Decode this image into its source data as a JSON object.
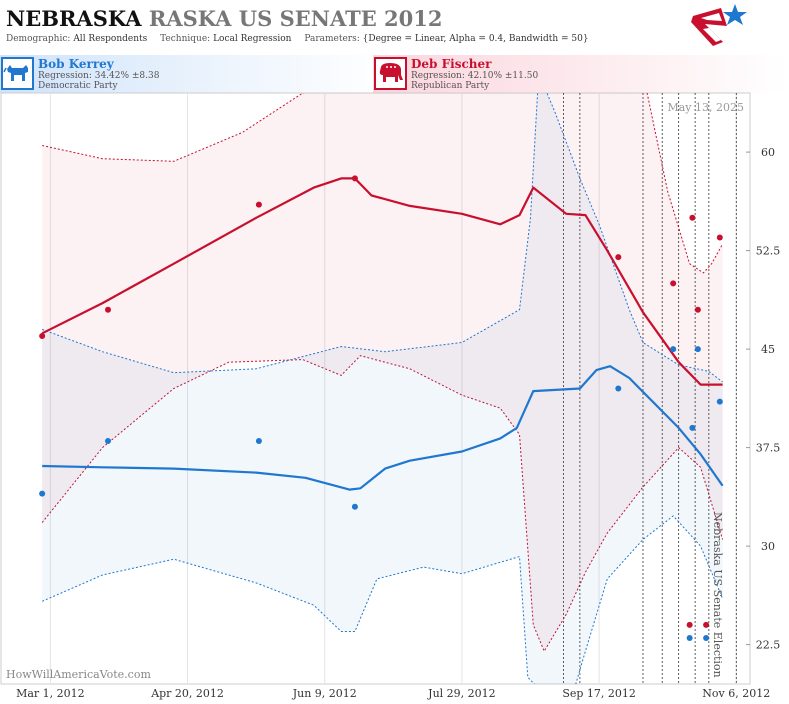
{
  "header": {
    "title_state": "NEBRASKA",
    "title_rest": "RASKA US SENATE 2012",
    "demographic_label": "Demographic:",
    "demographic_value": "All Respondents",
    "technique_label": "Technique:",
    "technique_value": "Local Regression",
    "parameters_label": "Parameters:",
    "parameters_value": "{Degree = Linear, Alpha = 0.4, Bandwidth = 50}"
  },
  "candidates": [
    {
      "name": "Bob Kerrey",
      "regression": "Regression: 34.42% ±8.38",
      "party": "Democratic Party",
      "color": "#1f77d0"
    },
    {
      "name": "Deb Fischer",
      "regression": "Regression: 42.10% ±11.50",
      "party": "Republican Party",
      "color": "#c8102e"
    }
  ],
  "chart_data": {
    "type": "scatter",
    "date_stamp": "May 13, 2025",
    "vertical_label": "Nebraska US Senate Election",
    "watermark": "HowWillAmericaVote.com",
    "x_axis": {
      "ticks": [
        "2012-03-01",
        "2012-04-20",
        "2012-06-09",
        "2012-07-29",
        "2012-09-17",
        "2012-11-06"
      ],
      "tick_labels": [
        "Mar 1, 2012",
        "Apr 20, 2012",
        "Jun 9, 2012",
        "Jul 29, 2012",
        "Sep 17, 2012",
        "Nov 6, 2012"
      ],
      "range": [
        "2012-02-12",
        "2012-11-11"
      ]
    },
    "y_axis": {
      "ticks": [
        22.5,
        30,
        37.5,
        45,
        52.5,
        60
      ],
      "tick_labels": [
        "22.5",
        "30",
        "37.5",
        "45",
        "52.5",
        "60"
      ],
      "range": [
        19.5,
        64.5
      ],
      "position": "right"
    },
    "grid": "x-only",
    "event_lines": [
      "2012-09-04",
      "2012-09-10",
      "2012-10-03",
      "2012-10-10",
      "2012-10-16",
      "2012-10-22",
      "2012-10-27",
      "2012-11-06"
    ],
    "series": [
      {
        "name": "Bob Kerrey",
        "color": "#1f77d0",
        "polls": [
          {
            "x": "2012-02-27",
            "y": 34
          },
          {
            "x": "2012-03-22",
            "y": 38
          },
          {
            "x": "2012-05-16",
            "y": 38
          },
          {
            "x": "2012-06-20",
            "y": 33
          },
          {
            "x": "2012-09-24",
            "y": 42
          },
          {
            "x": "2012-10-14",
            "y": 45
          },
          {
            "x": "2012-10-20",
            "y": 23
          },
          {
            "x": "2012-10-21",
            "y": 39
          },
          {
            "x": "2012-10-23",
            "y": 45
          },
          {
            "x": "2012-10-26",
            "y": 23
          },
          {
            "x": "2012-10-31",
            "y": 41
          }
        ],
        "regression": [
          {
            "x": "2012-02-27",
            "y": 36.1
          },
          {
            "x": "2012-03-20",
            "y": 36.0
          },
          {
            "x": "2012-04-15",
            "y": 35.9
          },
          {
            "x": "2012-05-15",
            "y": 35.6
          },
          {
            "x": "2012-06-02",
            "y": 35.2
          },
          {
            "x": "2012-06-18",
            "y": 34.3
          },
          {
            "x": "2012-06-22",
            "y": 34.4
          },
          {
            "x": "2012-07-01",
            "y": 35.9
          },
          {
            "x": "2012-07-10",
            "y": 36.5
          },
          {
            "x": "2012-07-29",
            "y": 37.2
          },
          {
            "x": "2012-08-12",
            "y": 38.2
          },
          {
            "x": "2012-08-18",
            "y": 39.0
          },
          {
            "x": "2012-08-24",
            "y": 41.8
          },
          {
            "x": "2012-09-10",
            "y": 42.0
          },
          {
            "x": "2012-09-16",
            "y": 43.4
          },
          {
            "x": "2012-09-21",
            "y": 43.7
          },
          {
            "x": "2012-09-28",
            "y": 42.8
          },
          {
            "x": "2012-10-16",
            "y": 39.0
          },
          {
            "x": "2012-10-24",
            "y": 37.0
          },
          {
            "x": "2012-11-01",
            "y": 34.6
          }
        ],
        "upper": [
          {
            "x": "2012-02-27",
            "y": 46.5
          },
          {
            "x": "2012-03-20",
            "y": 44.8
          },
          {
            "x": "2012-04-15",
            "y": 43.2
          },
          {
            "x": "2012-05-15",
            "y": 43.5
          },
          {
            "x": "2012-06-15",
            "y": 45.2
          },
          {
            "x": "2012-07-01",
            "y": 44.8
          },
          {
            "x": "2012-07-29",
            "y": 45.5
          },
          {
            "x": "2012-08-19",
            "y": 48.0
          },
          {
            "x": "2012-08-23",
            "y": 55.0
          },
          {
            "x": "2012-08-26",
            "y": 66.0
          },
          {
            "x": "2012-09-01",
            "y": 63.0
          },
          {
            "x": "2012-09-10",
            "y": 58.0
          },
          {
            "x": "2012-09-17",
            "y": 54.5
          },
          {
            "x": "2012-09-28",
            "y": 48.0
          },
          {
            "x": "2012-10-03",
            "y": 45.5
          },
          {
            "x": "2012-10-16",
            "y": 43.8
          },
          {
            "x": "2012-10-27",
            "y": 43.3
          },
          {
            "x": "2012-11-01",
            "y": 42.5
          }
        ],
        "lower": [
          {
            "x": "2012-02-27",
            "y": 25.8
          },
          {
            "x": "2012-03-20",
            "y": 27.8
          },
          {
            "x": "2012-04-15",
            "y": 29.0
          },
          {
            "x": "2012-05-15",
            "y": 27.2
          },
          {
            "x": "2012-06-05",
            "y": 25.5
          },
          {
            "x": "2012-06-15",
            "y": 23.5
          },
          {
            "x": "2012-06-20",
            "y": 23.5
          },
          {
            "x": "2012-06-28",
            "y": 27.5
          },
          {
            "x": "2012-07-15",
            "y": 28.4
          },
          {
            "x": "2012-07-29",
            "y": 27.9
          },
          {
            "x": "2012-08-19",
            "y": 29.2
          },
          {
            "x": "2012-08-22",
            "y": 20.0
          },
          {
            "x": "2012-09-05",
            "y": 17.0
          },
          {
            "x": "2012-09-12",
            "y": 22.0
          },
          {
            "x": "2012-09-20",
            "y": 27.5
          },
          {
            "x": "2012-10-03",
            "y": 30.5
          },
          {
            "x": "2012-10-14",
            "y": 32.3
          },
          {
            "x": "2012-10-24",
            "y": 30.0
          },
          {
            "x": "2012-11-01",
            "y": 26.0
          }
        ]
      },
      {
        "name": "Deb Fischer",
        "color": "#c8102e",
        "polls": [
          {
            "x": "2012-02-27",
            "y": 46
          },
          {
            "x": "2012-03-22",
            "y": 48
          },
          {
            "x": "2012-05-16",
            "y": 56
          },
          {
            "x": "2012-06-20",
            "y": 58
          },
          {
            "x": "2012-09-24",
            "y": 52
          },
          {
            "x": "2012-10-14",
            "y": 50
          },
          {
            "x": "2012-10-20",
            "y": 24
          },
          {
            "x": "2012-10-21",
            "y": 55
          },
          {
            "x": "2012-10-23",
            "y": 48
          },
          {
            "x": "2012-10-26",
            "y": 24
          },
          {
            "x": "2012-10-31",
            "y": 53.5
          }
        ],
        "regression": [
          {
            "x": "2012-02-27",
            "y": 46.2
          },
          {
            "x": "2012-03-20",
            "y": 48.5
          },
          {
            "x": "2012-04-15",
            "y": 51.5
          },
          {
            "x": "2012-05-15",
            "y": 55.0
          },
          {
            "x": "2012-06-05",
            "y": 57.3
          },
          {
            "x": "2012-06-15",
            "y": 58.0
          },
          {
            "x": "2012-06-20",
            "y": 58.0
          },
          {
            "x": "2012-06-26",
            "y": 56.7
          },
          {
            "x": "2012-07-10",
            "y": 55.9
          },
          {
            "x": "2012-07-29",
            "y": 55.3
          },
          {
            "x": "2012-08-12",
            "y": 54.5
          },
          {
            "x": "2012-08-19",
            "y": 55.2
          },
          {
            "x": "2012-08-24",
            "y": 57.3
          },
          {
            "x": "2012-09-05",
            "y": 55.3
          },
          {
            "x": "2012-09-12",
            "y": 55.2
          },
          {
            "x": "2012-09-20",
            "y": 52.5
          },
          {
            "x": "2012-10-03",
            "y": 47.8
          },
          {
            "x": "2012-10-16",
            "y": 44.0
          },
          {
            "x": "2012-10-24",
            "y": 42.3
          },
          {
            "x": "2012-11-01",
            "y": 42.3
          }
        ],
        "upper": [
          {
            "x": "2012-02-27",
            "y": 60.5
          },
          {
            "x": "2012-03-20",
            "y": 59.5
          },
          {
            "x": "2012-04-15",
            "y": 59.3
          },
          {
            "x": "2012-05-10",
            "y": 61.5
          },
          {
            "x": "2012-06-01",
            "y": 64.5
          },
          {
            "x": "2012-08-01",
            "y": 68.0
          },
          {
            "x": "2012-10-03",
            "y": 66.0
          },
          {
            "x": "2012-10-12",
            "y": 57.0
          },
          {
            "x": "2012-10-20",
            "y": 51.5
          },
          {
            "x": "2012-10-25",
            "y": 50.8
          },
          {
            "x": "2012-10-28",
            "y": 51.5
          },
          {
            "x": "2012-11-01",
            "y": 53.0
          }
        ],
        "lower": [
          {
            "x": "2012-02-27",
            "y": 31.8
          },
          {
            "x": "2012-03-20",
            "y": 37.5
          },
          {
            "x": "2012-04-15",
            "y": 42.0
          },
          {
            "x": "2012-05-05",
            "y": 44.0
          },
          {
            "x": "2012-06-01",
            "y": 44.2
          },
          {
            "x": "2012-06-15",
            "y": 43.0
          },
          {
            "x": "2012-06-22",
            "y": 44.5
          },
          {
            "x": "2012-07-10",
            "y": 43.5
          },
          {
            "x": "2012-07-29",
            "y": 41.5
          },
          {
            "x": "2012-08-12",
            "y": 40.5
          },
          {
            "x": "2012-08-19",
            "y": 38.5
          },
          {
            "x": "2012-08-24",
            "y": 24.0
          },
          {
            "x": "2012-08-28",
            "y": 22.0
          },
          {
            "x": "2012-09-05",
            "y": 24.8
          },
          {
            "x": "2012-09-12",
            "y": 28.0
          },
          {
            "x": "2012-09-20",
            "y": 31.0
          },
          {
            "x": "2012-10-03",
            "y": 34.5
          },
          {
            "x": "2012-10-16",
            "y": 37.5
          },
          {
            "x": "2012-10-24",
            "y": 36.0
          },
          {
            "x": "2012-11-01",
            "y": 30.5
          }
        ]
      }
    ]
  }
}
